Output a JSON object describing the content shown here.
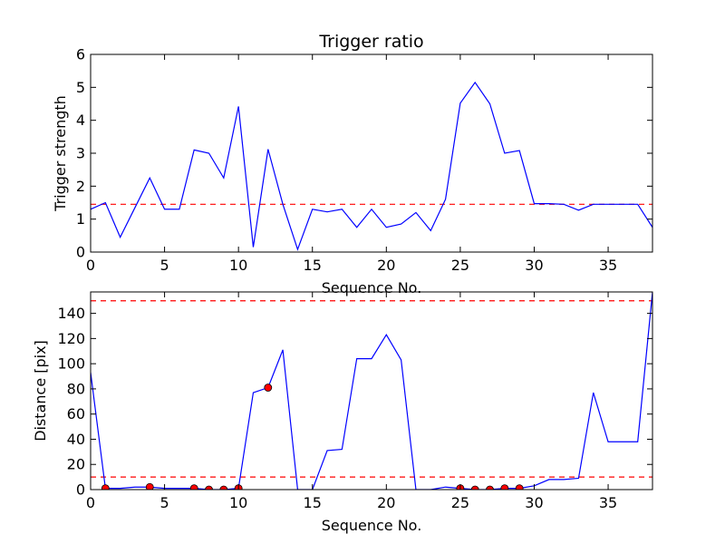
{
  "chart_data": [
    {
      "type": "line",
      "title": "Trigger ratio",
      "xlabel": "Sequence No.",
      "ylabel": "Trigger strength",
      "xlim": [
        0,
        38
      ],
      "ylim": [
        0,
        6
      ],
      "xticks": [
        0,
        5,
        10,
        15,
        20,
        25,
        30,
        35
      ],
      "yticks": [
        0,
        1,
        2,
        3,
        4,
        5,
        6
      ],
      "grid": false,
      "series": [
        {
          "color": "#0000ff",
          "x": [
            0,
            1,
            2,
            3,
            4,
            5,
            6,
            7,
            8,
            9,
            10,
            11,
            12,
            13,
            14,
            15,
            16,
            17,
            18,
            19,
            20,
            21,
            22,
            23,
            24,
            25,
            26,
            27,
            28,
            29,
            30,
            31,
            32,
            33,
            34,
            35,
            36,
            37,
            38
          ],
          "y": [
            1.3,
            1.5,
            0.45,
            1.35,
            2.25,
            1.3,
            1.3,
            3.1,
            3.0,
            2.25,
            4.42,
            0.15,
            3.12,
            1.45,
            0.08,
            1.3,
            1.22,
            1.3,
            0.75,
            1.3,
            0.75,
            0.85,
            1.2,
            0.65,
            1.6,
            4.52,
            5.15,
            4.5,
            3.0,
            3.08,
            1.47,
            1.47,
            1.45,
            1.27,
            1.45,
            1.45,
            1.45,
            1.45,
            0.75
          ]
        }
      ],
      "hlines": [
        {
          "y": 1.45,
          "color": "#ff0000",
          "style": "dashed"
        }
      ]
    },
    {
      "type": "line",
      "title": "",
      "xlabel": "Sequence No.",
      "ylabel": "Distance [pix]",
      "xlim": [
        0,
        38
      ],
      "ylim": [
        0,
        157
      ],
      "xticks": [
        0,
        5,
        10,
        15,
        20,
        25,
        30,
        35
      ],
      "yticks": [
        0,
        20,
        40,
        60,
        80,
        100,
        120,
        140
      ],
      "grid": false,
      "series": [
        {
          "color": "#0000ff",
          "x": [
            0,
            1,
            2,
            3,
            4,
            5,
            6,
            7,
            8,
            9,
            10,
            11,
            12,
            13,
            14,
            15,
            16,
            17,
            18,
            19,
            20,
            21,
            22,
            23,
            24,
            25,
            26,
            27,
            28,
            29,
            30,
            31,
            32,
            33,
            34,
            35,
            36,
            37,
            38
          ],
          "y": [
            93,
            1,
            1,
            2,
            2,
            1,
            1,
            1,
            0,
            0,
            1,
            77,
            81,
            111,
            0,
            0,
            31,
            32,
            104,
            104,
            123,
            103,
            0,
            0,
            2,
            1,
            0,
            0,
            1,
            1,
            3,
            8,
            8,
            9,
            77,
            38,
            38,
            38,
            157
          ]
        }
      ],
      "markers": {
        "color": "#ff0000",
        "x": [
          1,
          4,
          7,
          8,
          9,
          10,
          12,
          25,
          26,
          27,
          28,
          29
        ],
        "y": [
          1,
          2,
          1,
          0,
          0,
          1,
          81,
          1,
          0,
          0,
          1,
          1
        ]
      },
      "hlines": [
        {
          "y": 150,
          "color": "#ff0000",
          "style": "dashed"
        },
        {
          "y": 10,
          "color": "#ff0000",
          "style": "dashed"
        }
      ]
    }
  ]
}
